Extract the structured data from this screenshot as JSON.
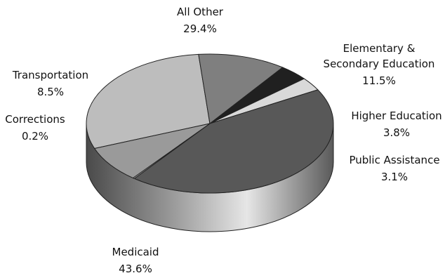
{
  "chart_data": {
    "type": "pie",
    "title": "",
    "style": "3d",
    "slices": [
      {
        "name": "All Other",
        "value": 29.4,
        "label_name": "All Other",
        "label_value": "29.4%",
        "color": "#bdbdbd"
      },
      {
        "name": "Elementary & Secondary Education",
        "label_line1": "Elementary &",
        "label_line2": "Secondary Education",
        "value": 11.5,
        "label_value": "11.5%",
        "color": "#7f7f7f"
      },
      {
        "name": "Higher Education",
        "value": 3.8,
        "label_name": "Higher Education",
        "label_value": "3.8%",
        "color": "#202020"
      },
      {
        "name": "Public Assistance",
        "value": 3.1,
        "label_name": "Public Assistance",
        "label_value": "3.1%",
        "color": "#d9d9d9"
      },
      {
        "name": "Medicaid",
        "value": 43.6,
        "label_name": "Medicaid",
        "label_value": "43.6%",
        "color": "#585858"
      },
      {
        "name": "Corrections",
        "value": 0.2,
        "label_name": "Corrections",
        "label_value": "0.2%",
        "color": "#ececec"
      },
      {
        "name": "Transportation",
        "value": 8.5,
        "label_name": "Transportation",
        "label_value": "8.5%",
        "color": "#9a9a9a"
      }
    ]
  }
}
